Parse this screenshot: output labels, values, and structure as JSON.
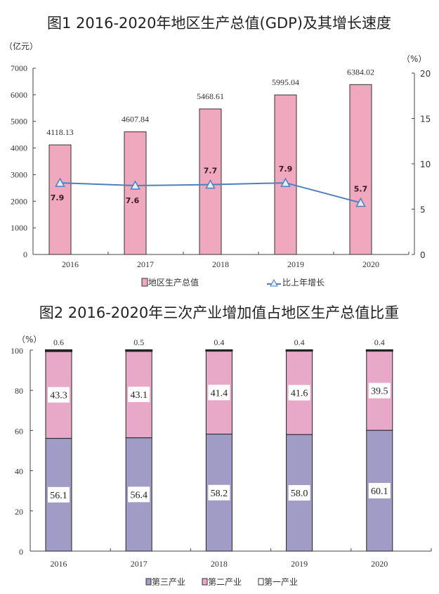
{
  "chart_data": [
    {
      "type": "bar",
      "title": "图1 2016-2020年地区生产总值(GDP)及其增长速度",
      "categories": [
        "2016",
        "2017",
        "2018",
        "2019",
        "2020"
      ],
      "left_unit": "（亿元）",
      "right_unit": "（%）",
      "ylim": [
        0,
        7000
      ],
      "yticks": [
        0,
        1000,
        2000,
        3000,
        4000,
        5000,
        6000,
        7000
      ],
      "y2lim": [
        0,
        20
      ],
      "y2ticks": [
        0,
        5,
        10,
        15,
        20
      ],
      "series": [
        {
          "name": "地区生产总值",
          "type": "bar",
          "axis": "left",
          "values": [
            4118.13,
            4607.84,
            5468.61,
            5995.04,
            6384.02
          ],
          "labels": [
            "4118.13",
            "4607.84",
            "5468.61",
            "5995.04",
            "6384.02"
          ],
          "color": "#f0a8be"
        },
        {
          "name": "比上年增长",
          "type": "line",
          "axis": "right",
          "values": [
            7.9,
            7.6,
            7.7,
            7.9,
            5.7
          ],
          "labels": [
            "7.9",
            "7.6",
            "7.7",
            "7.9",
            "5.7"
          ],
          "color": "#4f7fc0",
          "marker": "triangle"
        }
      ],
      "grid": false,
      "legend": "bottom"
    },
    {
      "type": "bar",
      "stacked": true,
      "title": "图2 2016-2020年三次产业增加值占地区生产总值比重",
      "categories": [
        "2016",
        "2017",
        "2018",
        "2019",
        "2020"
      ],
      "unit": "（%）",
      "ylim": [
        0,
        100
      ],
      "yticks": [
        0,
        20,
        40,
        60,
        80,
        100
      ],
      "series": [
        {
          "name": "第三产业",
          "values": [
            56.1,
            56.4,
            58.2,
            58.0,
            60.1
          ],
          "labels": [
            "56.1",
            "56.4",
            "58.2",
            "58.0",
            "60.1"
          ],
          "color": "#a09cc6"
        },
        {
          "name": "第二产业",
          "values": [
            43.3,
            43.1,
            41.4,
            41.6,
            39.5
          ],
          "labels": [
            "43.3",
            "43.1",
            "41.4",
            "41.6",
            "39.5"
          ],
          "color": "#e8a8c8"
        },
        {
          "name": "第一产业",
          "values": [
            0.6,
            0.5,
            0.4,
            0.4,
            0.4
          ],
          "labels": [
            "0.6",
            "0.5",
            "0.4",
            "0.4",
            "0.4"
          ],
          "color": "#ffffff"
        }
      ],
      "grid": false,
      "legend": "bottom"
    }
  ]
}
